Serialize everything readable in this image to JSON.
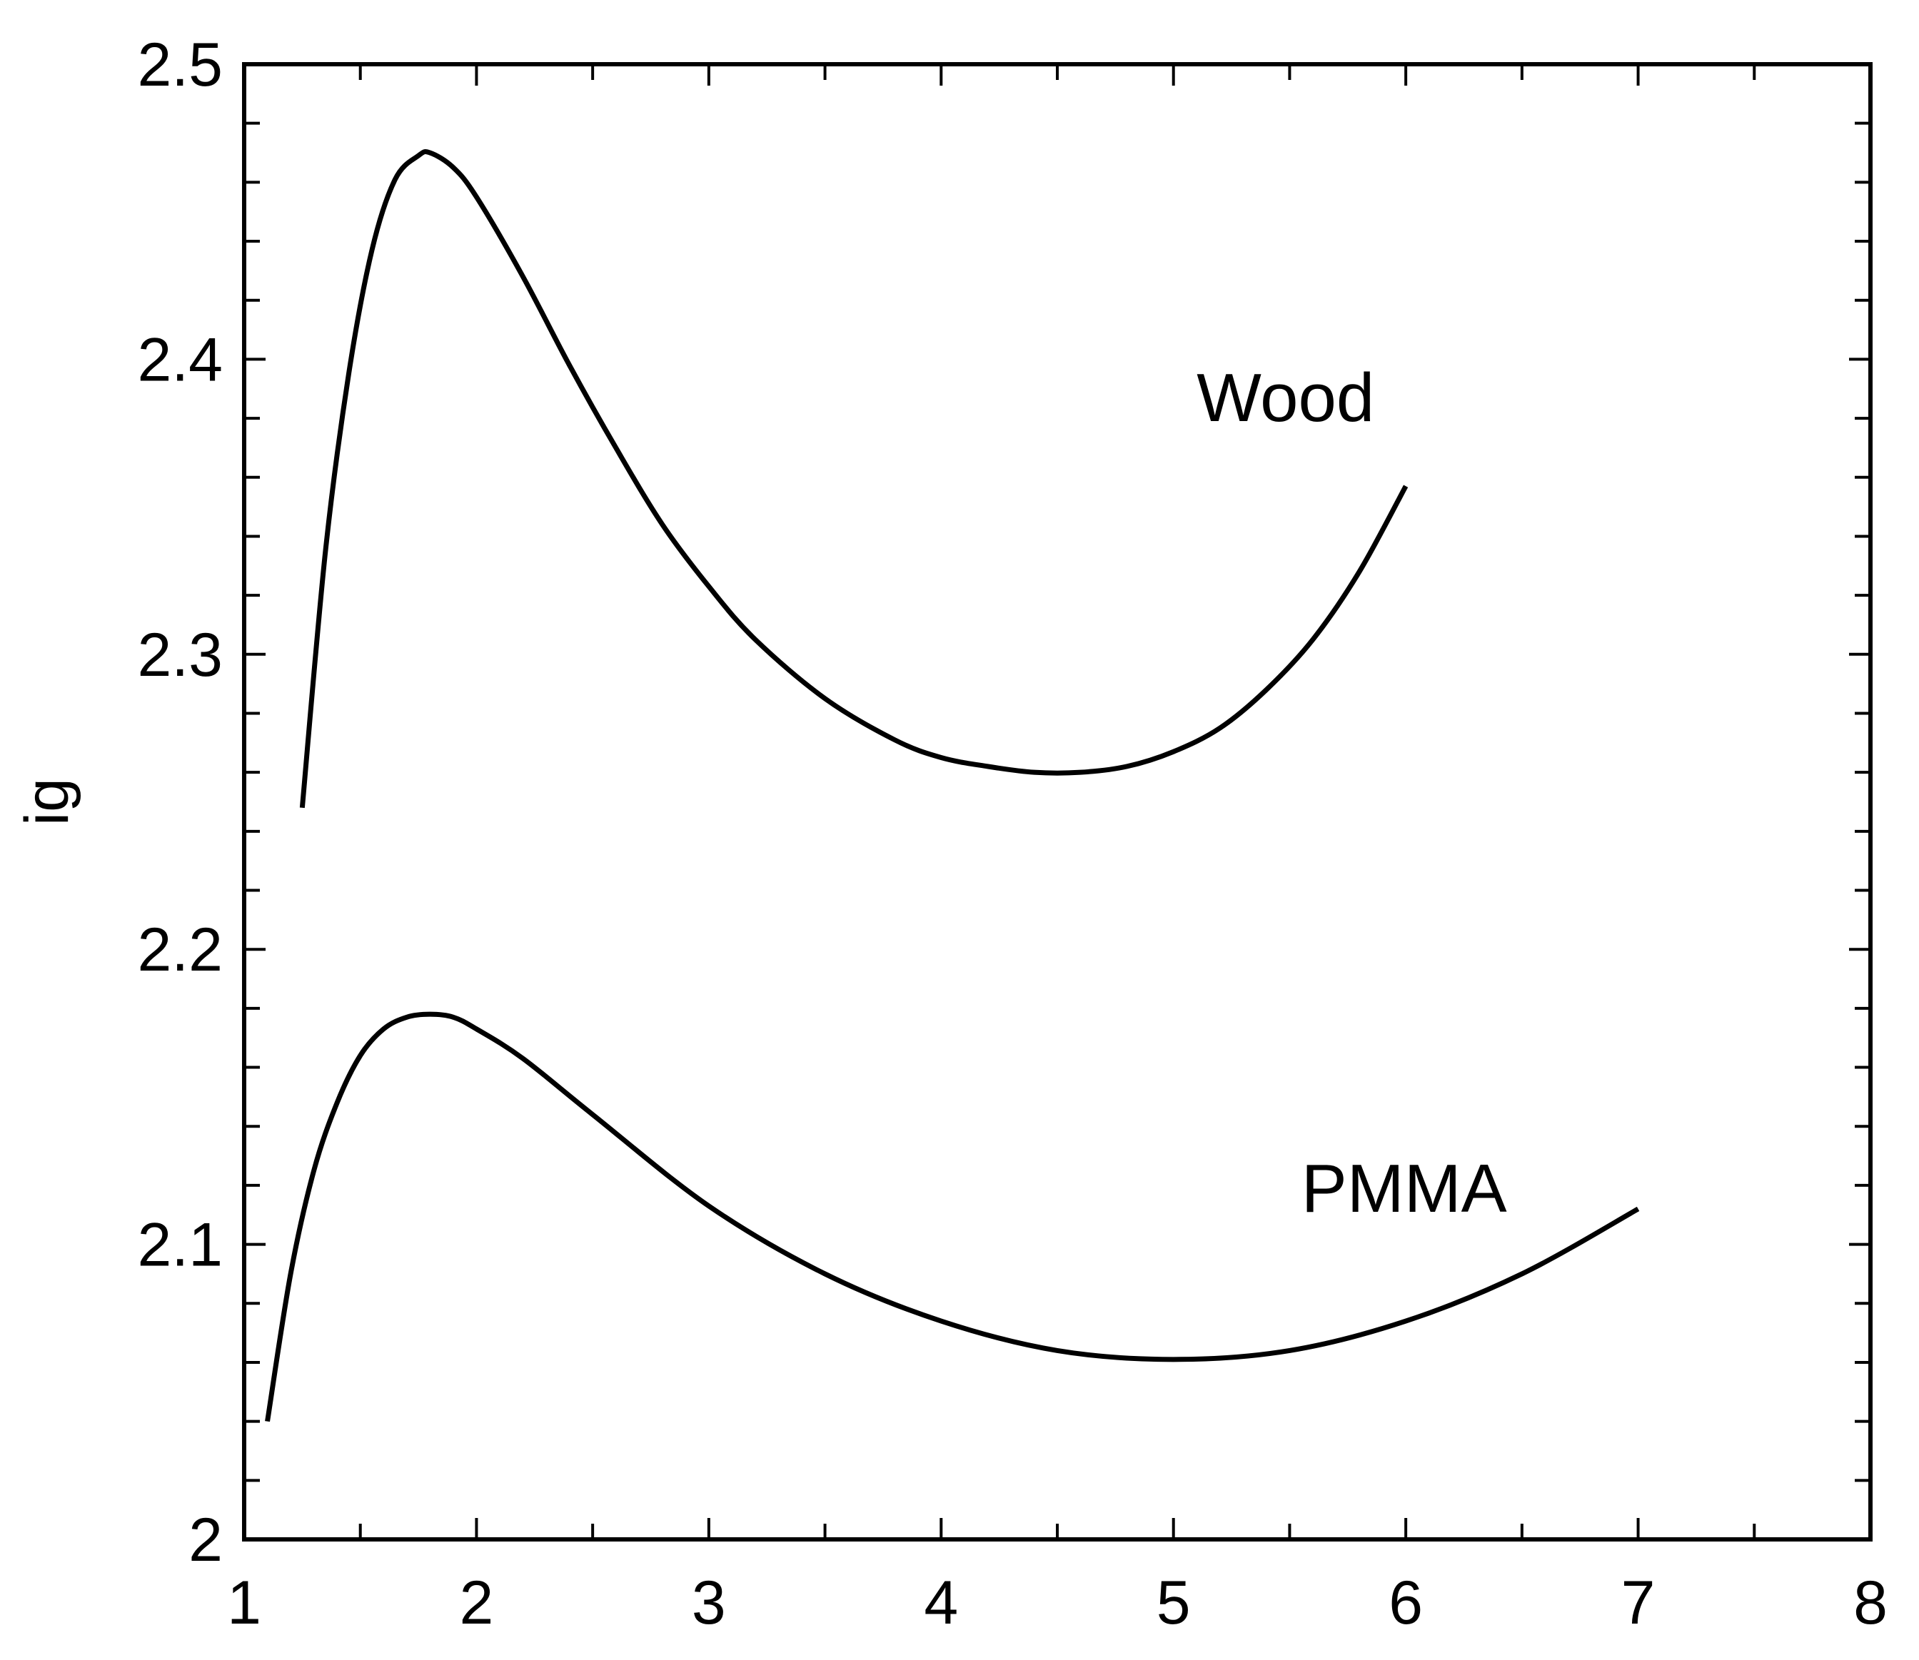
{
  "chart_data": {
    "type": "line",
    "title": "",
    "xlabel": "",
    "ylabel": "ig",
    "xlim": [
      1,
      8
    ],
    "ylim": [
      2.0,
      2.5
    ],
    "x_ticks": [
      1,
      2,
      3,
      4,
      5,
      6,
      7,
      8
    ],
    "x_tick_labels": [
      "1",
      "2",
      "3",
      "4",
      "5",
      "6",
      "7",
      "8"
    ],
    "y_ticks": [
      2.0,
      2.1,
      2.2,
      2.3,
      2.4,
      2.5
    ],
    "y_tick_labels": [
      "2",
      "2.1",
      "2.2",
      "2.3",
      "2.4",
      "2.5"
    ],
    "x_minor_step": 0.5,
    "y_minor_step": 0.02,
    "grid": false,
    "legend": "none",
    "colors": {
      "line": "#000000",
      "frame": "#000000",
      "background": "#ffffff"
    },
    "series": [
      {
        "name": "Wood",
        "x": [
          1.25,
          1.35,
          1.45,
          1.55,
          1.65,
          1.75,
          1.8,
          1.9,
          2.0,
          2.2,
          2.4,
          2.6,
          2.8,
          3.0,
          3.2,
          3.5,
          3.8,
          4.0,
          4.2,
          4.4,
          4.6,
          4.8,
          5.0,
          5.2,
          5.4,
          5.6,
          5.8,
          6.0
        ],
        "y": [
          2.248,
          2.335,
          2.395,
          2.437,
          2.461,
          2.469,
          2.47,
          2.465,
          2.455,
          2.428,
          2.398,
          2.37,
          2.344,
          2.323,
          2.305,
          2.285,
          2.271,
          2.265,
          2.262,
          2.26,
          2.26,
          2.262,
          2.267,
          2.275,
          2.288,
          2.305,
          2.328,
          2.357
        ]
      },
      {
        "name": "PMMA",
        "x": [
          1.1,
          1.2,
          1.3,
          1.4,
          1.5,
          1.6,
          1.7,
          1.8,
          1.9,
          2.0,
          2.2,
          2.5,
          3.0,
          3.5,
          4.0,
          4.5,
          5.0,
          5.5,
          6.0,
          6.5,
          7.0
        ],
        "y": [
          2.04,
          2.09,
          2.125,
          2.148,
          2.164,
          2.173,
          2.177,
          2.178,
          2.177,
          2.173,
          2.163,
          2.144,
          2.113,
          2.09,
          2.074,
          2.064,
          2.061,
          2.064,
          2.074,
          2.09,
          2.112
        ]
      }
    ],
    "annotations": [
      {
        "text": "Wood",
        "x": 5.1,
        "y": 2.379
      },
      {
        "text": "PMMA",
        "x": 5.55,
        "y": 2.111
      }
    ]
  }
}
